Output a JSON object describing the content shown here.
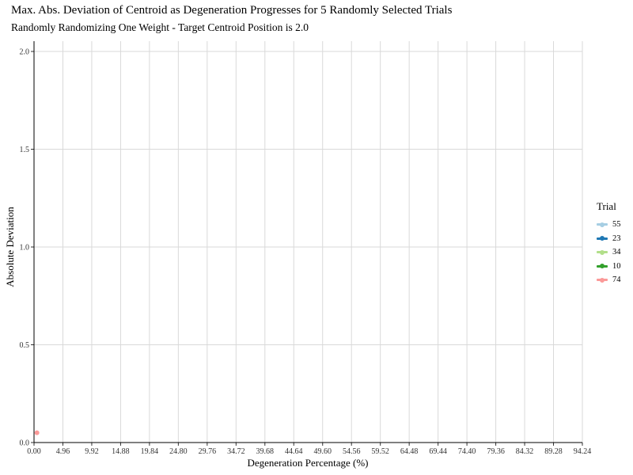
{
  "chart_data": {
    "type": "line",
    "title": "Max. Abs. Deviation of Centroid as Degeneration Progresses for 5 Randomly Selected Trials",
    "subtitle": "Randomly Randomizing One Weight - Target Centroid Position is 2.0",
    "xlabel": "Degeneration Percentage (%)",
    "ylabel": "Absolute Deviation",
    "x_ticks": [
      "0.00",
      "4.96",
      "9.92",
      "14.88",
      "19.84",
      "24.80",
      "29.76",
      "34.72",
      "39.68",
      "44.64",
      "49.60",
      "54.56",
      "59.52",
      "64.48",
      "69.44",
      "74.40",
      "79.36",
      "84.32",
      "89.28",
      "94.24"
    ],
    "y_ticks": [
      "0.0",
      "0.5",
      "1.0",
      "1.5",
      "2.0"
    ],
    "xlim": [
      0,
      94.24
    ],
    "ylim": [
      0,
      2.0
    ],
    "grid": true,
    "legend_title": "Trial",
    "legend_position": "right",
    "series": [
      {
        "name": "55",
        "color": "#a6cee3",
        "points": []
      },
      {
        "name": "23",
        "color": "#1f78b4",
        "points": []
      },
      {
        "name": "34",
        "color": "#b2df8a",
        "points": []
      },
      {
        "name": "10",
        "color": "#33a02c",
        "points": []
      },
      {
        "name": "74",
        "color": "#fb9a99",
        "points": [
          [
            0.5,
            0.05
          ]
        ]
      }
    ]
  }
}
